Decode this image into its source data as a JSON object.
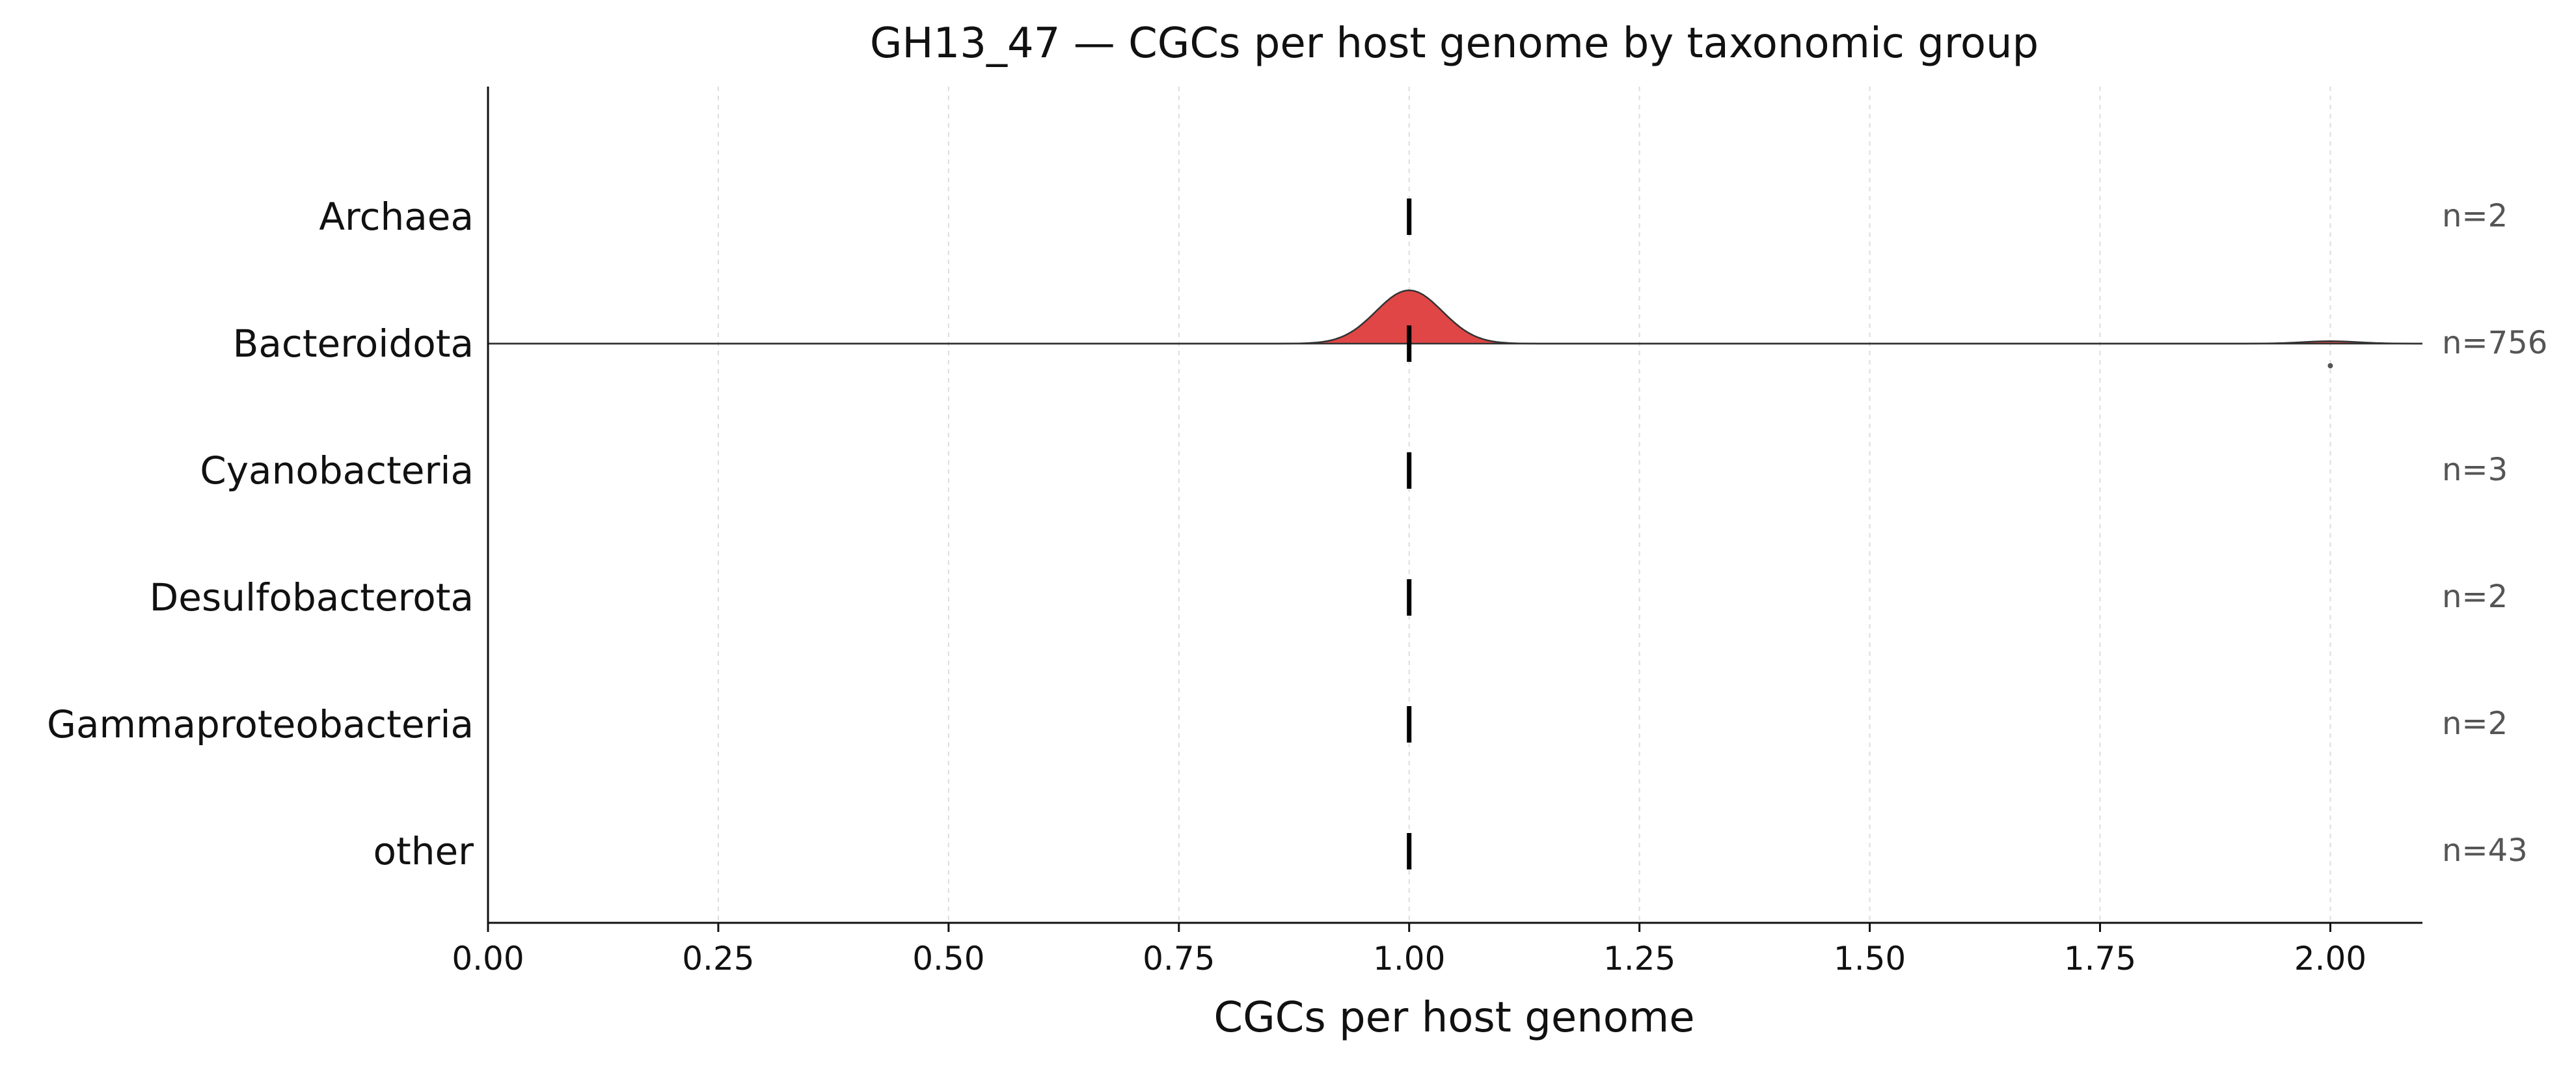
{
  "chart_data": {
    "type": "ridgeline",
    "title": "GH13_47 — CGCs per host genome by taxonomic group",
    "xlabel": "CGCs per host genome",
    "ylabel": "",
    "xlim": [
      0,
      2.1
    ],
    "xticks": [
      0.0,
      0.25,
      0.5,
      0.75,
      1.0,
      1.25,
      1.5,
      1.75,
      2.0
    ],
    "xtick_labels": [
      "0.00",
      "0.25",
      "0.50",
      "0.75",
      "1.00",
      "1.25",
      "1.50",
      "1.75",
      "2.00"
    ],
    "grid": "vertical dashed",
    "categories": [
      "Archaea",
      "Bacteroidota",
      "Cyanobacteria",
      "Desulfobacterota",
      "Gammaproteobacteria",
      "other"
    ],
    "counts": [
      "n=2",
      "n=756",
      "n=3",
      "n=2",
      "n=2",
      "n=43"
    ],
    "medians": [
      1.0,
      1.0,
      1.0,
      1.0,
      1.0,
      1.0
    ],
    "density_category": "Bacteroidota",
    "density_peak": 1.0,
    "outliers": [
      {
        "category": "Bacteroidota",
        "x": 2.0
      }
    ],
    "colors": {
      "density_fill": "#e04646",
      "median": "#000000",
      "outline": "#333333"
    }
  }
}
